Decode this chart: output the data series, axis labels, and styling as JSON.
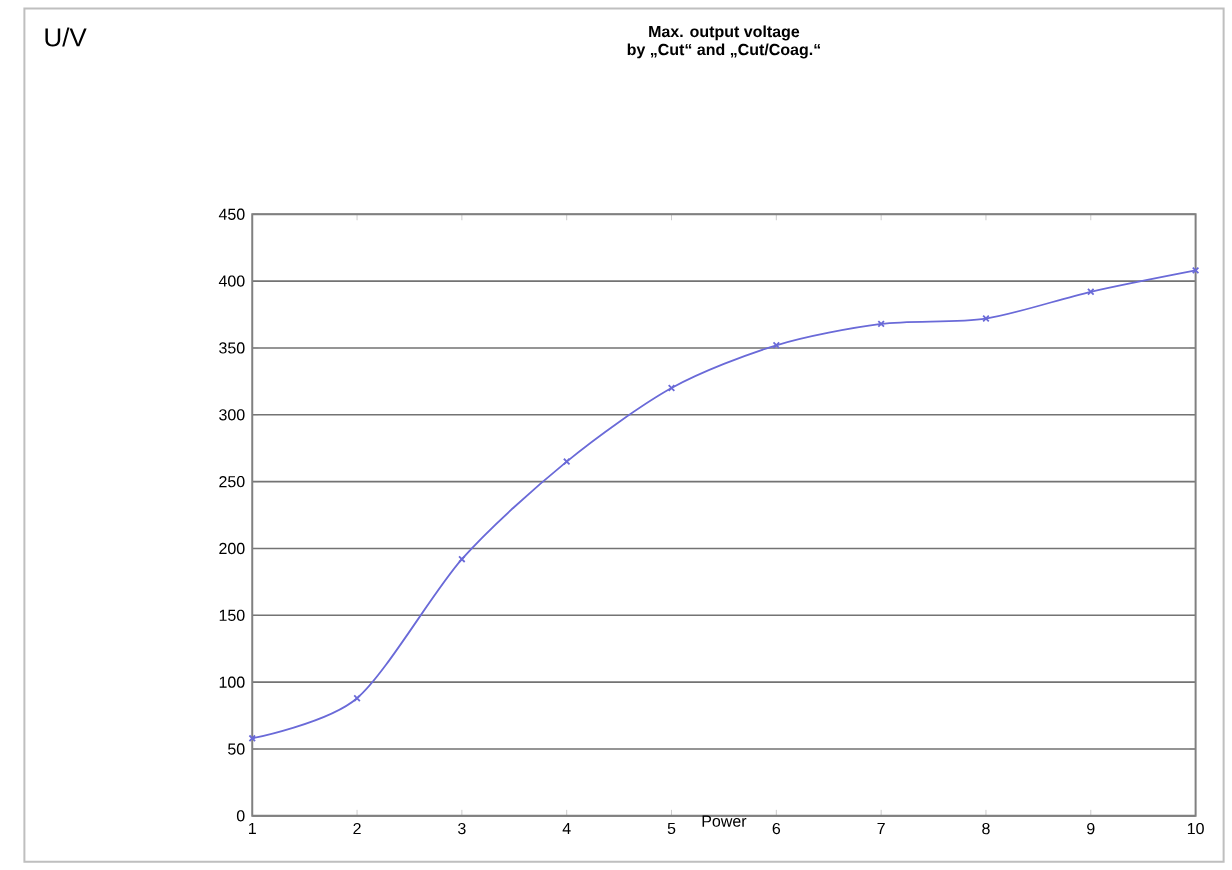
{
  "chart_data": {
    "type": "line",
    "title": "Max. output voltage",
    "subtitle": "by „Cut“ and „Cut/Coag.“",
    "xlabel": "Power",
    "annotations": [
      "U/V"
    ],
    "x": [
      1,
      2,
      3,
      4,
      5,
      6,
      7,
      8,
      9,
      10
    ],
    "series": [
      {
        "color": "#6a6ad8",
        "values": [
          58,
          88,
          192,
          265,
          320,
          352,
          368,
          372,
          392,
          408
        ]
      }
    ],
    "xlim": [
      1,
      10
    ],
    "xticks": [
      1,
      2,
      3,
      4,
      5,
      6,
      7,
      8,
      9,
      10
    ],
    "ylim": [
      0,
      450
    ],
    "yticks": [
      0,
      50,
      100,
      150,
      200,
      250,
      300,
      350,
      400,
      450
    ],
    "grid": "y",
    "marker": "cross",
    "line_style": "solid"
  }
}
